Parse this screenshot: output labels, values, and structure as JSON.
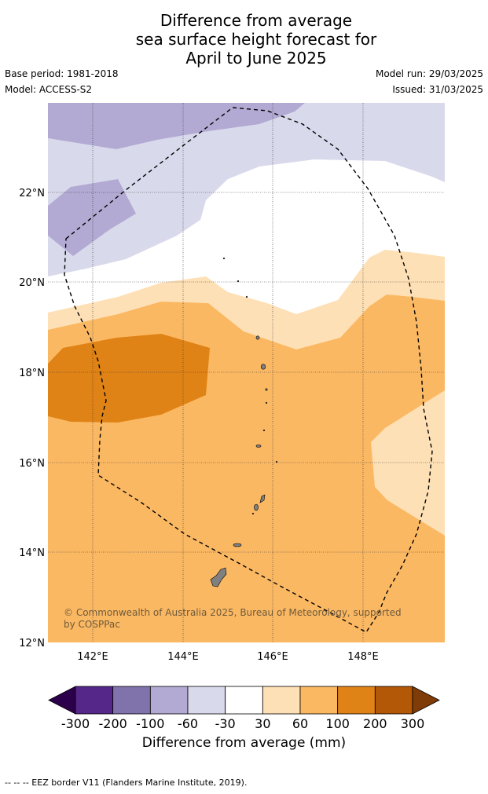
{
  "title": {
    "line1": "Difference from average",
    "line2": "sea surface height forecast for",
    "line3": "April to June 2025"
  },
  "meta": {
    "base_period": "Base period: 1981-2018",
    "model": "Model: ACCESS-S2",
    "model_run": "Model run: 29/03/2025",
    "issued": "Issued: 31/03/2025"
  },
  "map": {
    "lat_labels": [
      "22°N",
      "20°N",
      "18°N",
      "16°N",
      "14°N",
      "12°N"
    ],
    "lon_labels": [
      "142°E",
      "144°E",
      "146°E",
      "148°E"
    ],
    "copyright_line1": "© Commonwealth of Australia 2025, Bureau of Meteorology, supported",
    "copyright_line2": "by COSPPac",
    "eez_label": "EEZ border",
    "colors": {
      "lt_purple": "#d9d9ec",
      "md_purple": "#b2aad2",
      "lt_orange": "#fee0b6",
      "md_orange": "#fbb863",
      "dk_orange": "#e08316",
      "land": "#808080"
    }
  },
  "colorbar": {
    "ticks": [
      "-300",
      "-200",
      "-100",
      "-60",
      "-30",
      "30",
      "60",
      "100",
      "200",
      "300"
    ],
    "colors": [
      "#2d004b",
      "#542788",
      "#8073ac",
      "#b2aad2",
      "#d9d9ec",
      "#ffffff",
      "#fee0b6",
      "#fbb863",
      "#e08316",
      "#b35806",
      "#7f3b08"
    ],
    "label": "Difference from average (mm)"
  },
  "footer": "-- -- -- EEZ border V11 (Flanders Marine Institute, 2019)."
}
